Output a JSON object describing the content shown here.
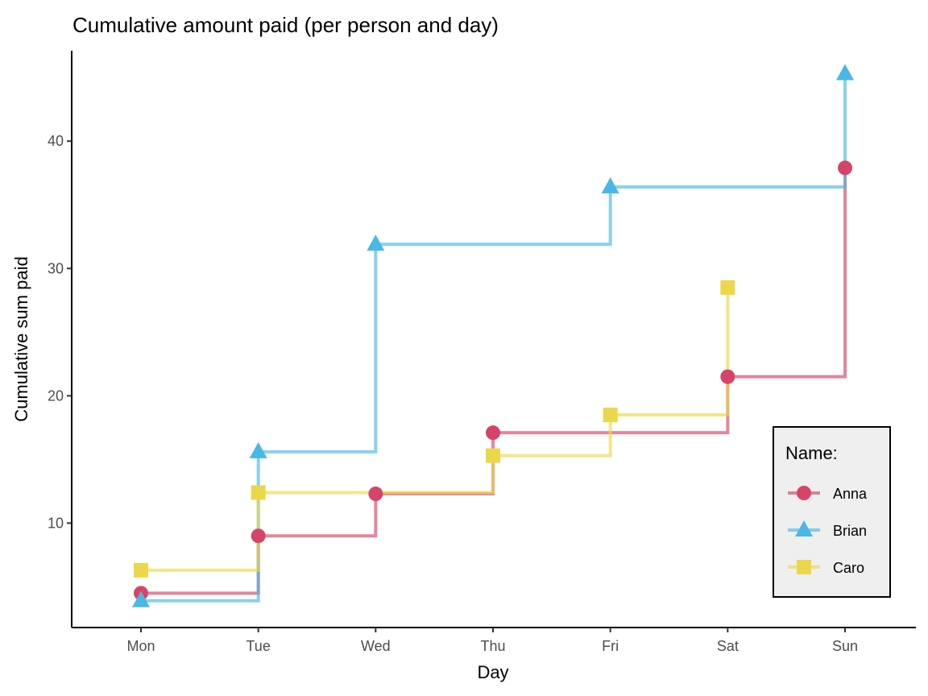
{
  "chart_data": {
    "type": "line",
    "subtype": "step",
    "title": "Cumulative amount paid (per person and day)",
    "xlabel": "Day",
    "ylabel": "Cumulative sum paid",
    "categories": [
      "Mon",
      "Tue",
      "Wed",
      "Thu",
      "Fri",
      "Sat",
      "Sun"
    ],
    "yticks": [
      10,
      20,
      30,
      40
    ],
    "ylim": [
      1.8,
      47.1
    ],
    "grid": false,
    "legend": {
      "title": "Name:",
      "position": "right-bottom-inside"
    },
    "series": [
      {
        "name": "Anna",
        "color": "#D64469",
        "marker": "circle",
        "values": [
          4.5,
          9.0,
          12.3,
          17.1,
          17.1,
          21.5,
          37.9
        ],
        "markers": [
          true,
          true,
          true,
          true,
          false,
          true,
          true
        ]
      },
      {
        "name": "Brian",
        "color": "#4AB8E4",
        "marker": "triangle",
        "values": [
          3.9,
          15.6,
          31.9,
          31.9,
          36.4,
          36.4,
          45.3
        ],
        "markers": [
          true,
          true,
          true,
          false,
          true,
          false,
          true
        ]
      },
      {
        "name": "Caro",
        "color": "#EBD84A",
        "marker": "square",
        "values": [
          6.3,
          12.4,
          12.4,
          15.3,
          18.5,
          28.5,
          null
        ],
        "markers": [
          true,
          true,
          false,
          true,
          true,
          true,
          false
        ]
      }
    ]
  }
}
